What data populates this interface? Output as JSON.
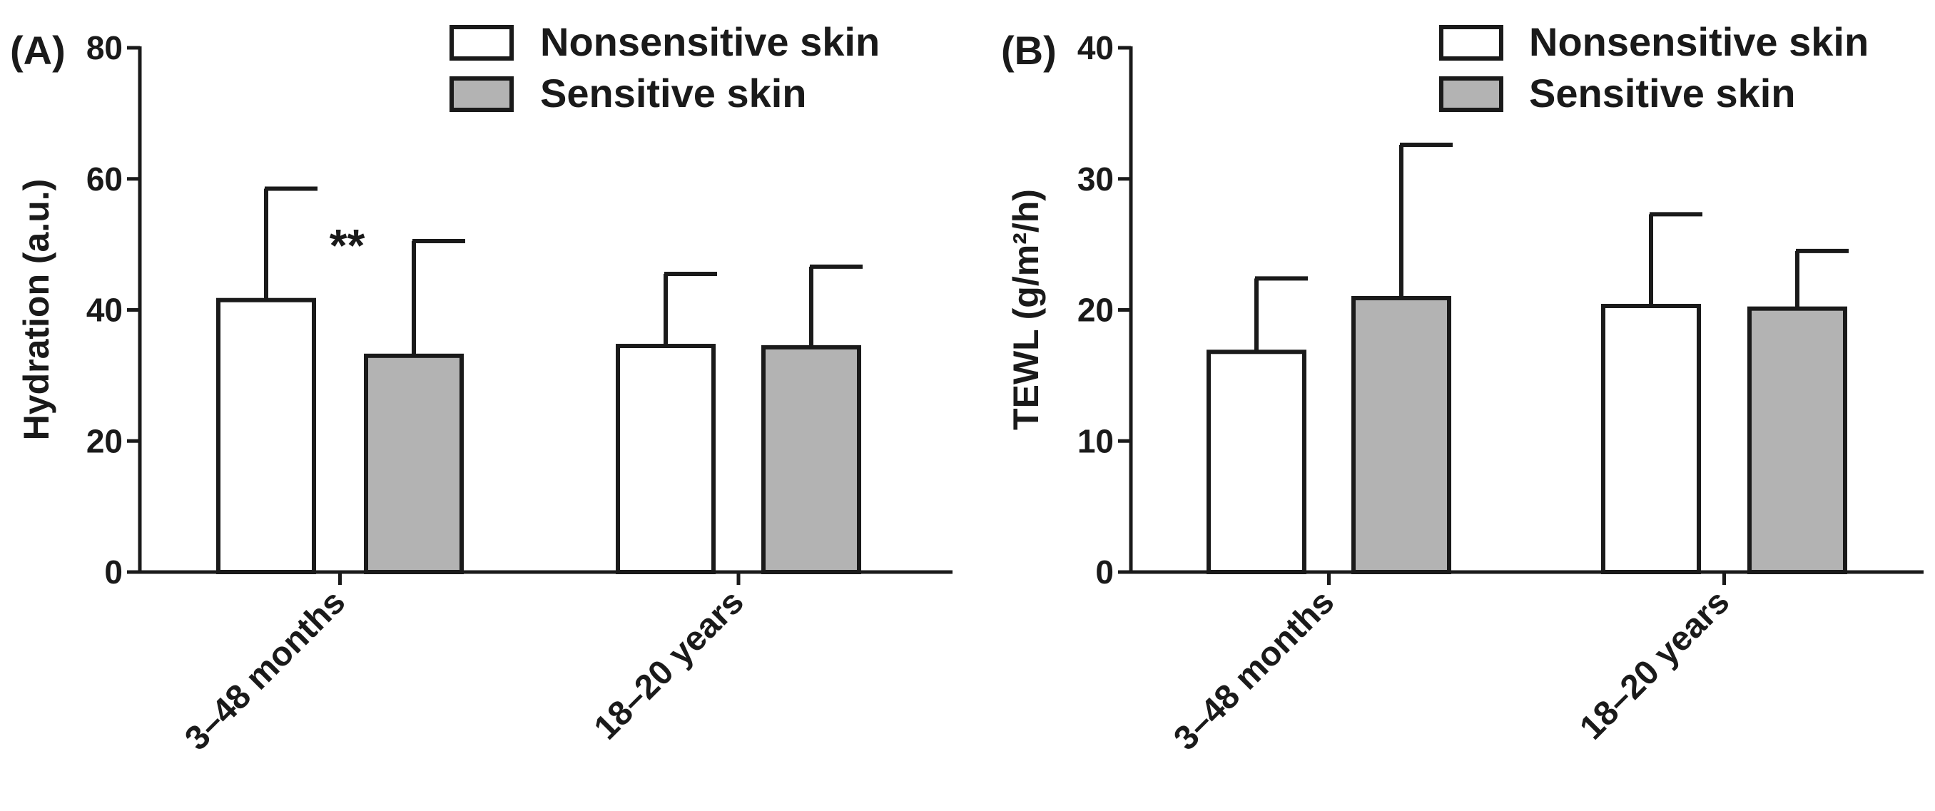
{
  "colors": {
    "nonsensitive": "#ffffff",
    "sensitive": "#b3b3b3",
    "stroke": "#1a1a1a",
    "background": "#ffffff"
  },
  "chart_data": [
    {
      "type": "bar",
      "panel_label": "(A)",
      "title": "",
      "xlabel": "",
      "ylabel": "Hydration (a.u.)",
      "ylim": [
        0,
        80
      ],
      "yticks": [
        0,
        20,
        40,
        60,
        80
      ],
      "ytick_labels": [
        "0",
        "20",
        "40",
        "60",
        "80"
      ],
      "categories": [
        "3–48 months",
        "18–20 years"
      ],
      "series": [
        {
          "name": "Nonsensitive skin",
          "values": [
            41.5,
            34.5
          ],
          "error": [
            17.0,
            11.0
          ]
        },
        {
          "name": "Sensitive skin",
          "values": [
            33.0,
            34.3
          ],
          "error": [
            17.5,
            12.3
          ]
        }
      ],
      "annotations": [
        {
          "text": "**",
          "category": "3–48 months"
        }
      ],
      "legend": {
        "position": "top-right",
        "entries": [
          "Nonsensitive skin",
          "Sensitive skin"
        ]
      }
    },
    {
      "type": "bar",
      "panel_label": "(B)",
      "title": "",
      "xlabel": "",
      "ylabel": "TEWL (g/m²/h)",
      "ylim": [
        0,
        40
      ],
      "yticks": [
        0,
        10,
        20,
        30,
        40
      ],
      "ytick_labels": [
        "0",
        "10",
        "20",
        "30",
        "40"
      ],
      "categories": [
        "3–48 months",
        "18–20 years"
      ],
      "series": [
        {
          "name": "Nonsensitive skin",
          "values": [
            16.8,
            20.3
          ],
          "error": [
            5.6,
            7.0
          ]
        },
        {
          "name": "Sensitive skin",
          "values": [
            20.9,
            20.1
          ],
          "error": [
            11.7,
            4.4
          ]
        }
      ],
      "annotations": [],
      "legend": {
        "position": "top-right",
        "entries": [
          "Nonsensitive skin",
          "Sensitive skin"
        ]
      }
    }
  ]
}
